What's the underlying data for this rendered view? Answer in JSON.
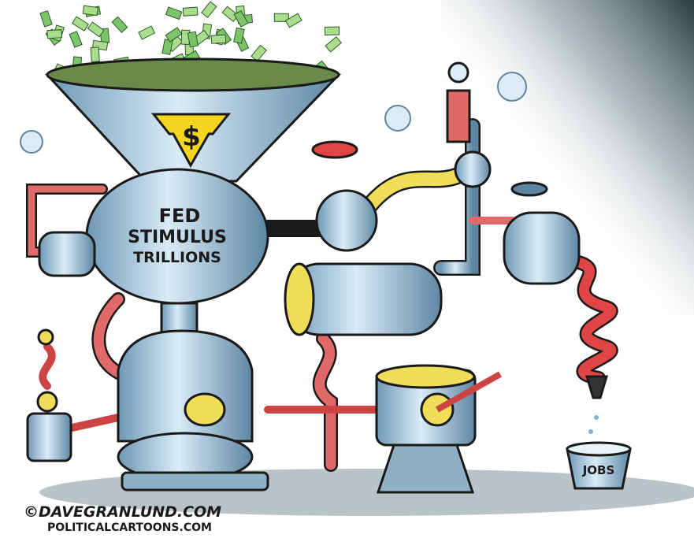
{
  "funnel": {
    "symbol": "$"
  },
  "machine": {
    "label_lines": [
      "FED",
      "STIMULUS",
      "TRILLIONS"
    ]
  },
  "bucket": {
    "label": "JOBS"
  },
  "credits": [
    "©DAVEGRANLUND.COM",
    "POLITICALCARTOONS.COM"
  ]
}
